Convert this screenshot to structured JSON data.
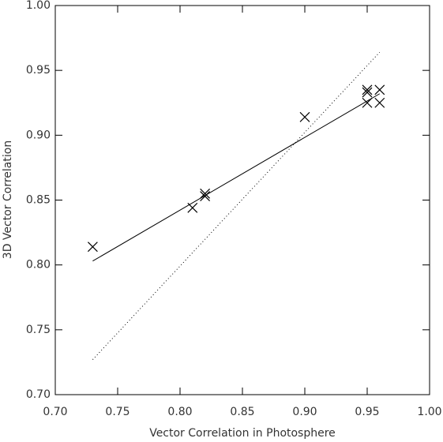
{
  "chart_data": {
    "type": "scatter",
    "x_label": "Vector Correlation in Photosphere",
    "y_label": "3D Vector Correlation",
    "xlim": [
      0.7,
      1.0
    ],
    "ylim": [
      0.7,
      1.0
    ],
    "xticks": [
      {
        "value": 0.7,
        "label": "0.70"
      },
      {
        "value": 0.75,
        "label": "0.75"
      },
      {
        "value": 0.8,
        "label": "0.80"
      },
      {
        "value": 0.85,
        "label": "0.85"
      },
      {
        "value": 0.9,
        "label": "0.90"
      },
      {
        "value": 0.95,
        "label": "0.95"
      },
      {
        "value": 1.0,
        "label": "1.00"
      }
    ],
    "yticks": [
      {
        "value": 0.7,
        "label": "0.70"
      },
      {
        "value": 0.75,
        "label": "0.75"
      },
      {
        "value": 0.8,
        "label": "0.80"
      },
      {
        "value": 0.85,
        "label": "0.85"
      },
      {
        "value": 0.9,
        "label": "0.90"
      },
      {
        "value": 0.95,
        "label": "0.95"
      },
      {
        "value": 1.0,
        "label": "1.00"
      }
    ],
    "color": "#000000",
    "series": [
      {
        "x": [
          0.73,
          0.81,
          0.82,
          0.82,
          0.9,
          0.95,
          0.95,
          0.95,
          0.96,
          0.96
        ],
        "values": [
          0.814,
          0.844,
          0.855,
          0.853,
          0.914,
          0.935,
          0.933,
          0.925,
          0.935,
          0.925
        ]
      }
    ],
    "lines": [
      {
        "x": [
          0.73,
          0.96
        ],
        "values": [
          0.803,
          0.932
        ],
        "dash": "solid"
      },
      {
        "x": [
          0.73,
          0.96
        ],
        "values": [
          0.727,
          0.964
        ],
        "dash": "dotted"
      }
    ]
  }
}
